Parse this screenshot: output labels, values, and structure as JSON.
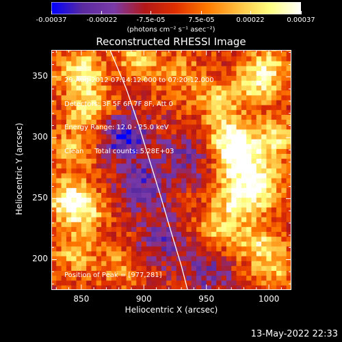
{
  "chart_data": {
    "type": "heatmap",
    "title": "Reconstructed RHESSI Image",
    "xlabel": "Heliocentric X (arcsec)",
    "ylabel": "Heliocentric Y (arcsec)",
    "xlim": [
      826,
      1018
    ],
    "ylim": [
      175,
      372
    ],
    "x_ticks": [
      850,
      900,
      950,
      1000
    ],
    "y_ticks": [
      200,
      250,
      300,
      350
    ],
    "colorbar": {
      "range": [
        -0.00037,
        0.00037
      ],
      "tick_values": [
        -0.00037,
        -0.00022,
        -7.5e-05,
        7.5e-05,
        0.00022,
        0.00037
      ],
      "tick_labels": [
        "-0.00037",
        "-0.00022",
        "-7.5e-05",
        "7.5e-05",
        "0.00022",
        "0.00037"
      ],
      "unit_label": "(photons cm⁻² s⁻¹ asec⁻²)",
      "colors": [
        "#0000ff",
        "#5a2aa0",
        "#7a3aa8",
        "#b31818",
        "#e03000",
        "#ff7a00",
        "#ffc040",
        "#ffff80",
        "#ffffff"
      ]
    },
    "annotations": [
      "29-Aug-2012 07:14:12.000 to 07:20:12.000",
      "Detectors: 3F 5F 6F 7F 8F, Att 0",
      "Energy Range: 12.0 - 25.0 keV",
      "Clean     Total counts: 5.28E+03"
    ],
    "peak_label": "Position of Peak = [977,281]",
    "peak": {
      "x": 977,
      "y": 281
    },
    "limb_curve": [
      [
        873,
        372
      ],
      [
        886,
        340
      ],
      [
        896,
        310
      ],
      [
        905,
        280
      ],
      [
        914,
        250
      ],
      [
        922,
        222
      ],
      [
        930,
        195
      ],
      [
        935,
        175
      ]
    ],
    "grid": false,
    "bright_sources": [
      {
        "x": 850,
        "y": 355,
        "strength": 0.85
      },
      {
        "x": 855,
        "y": 325,
        "strength": 0.7
      },
      {
        "x": 843,
        "y": 290,
        "strength": 0.55
      },
      {
        "x": 838,
        "y": 250,
        "strength": 0.75
      },
      {
        "x": 852,
        "y": 240,
        "strength": 0.65
      },
      {
        "x": 845,
        "y": 205,
        "strength": 0.5
      },
      {
        "x": 895,
        "y": 365,
        "strength": 0.6
      },
      {
        "x": 930,
        "y": 350,
        "strength": 0.45
      },
      {
        "x": 880,
        "y": 195,
        "strength": 0.35
      },
      {
        "x": 977,
        "y": 281,
        "strength": 1.0
      },
      {
        "x": 968,
        "y": 300,
        "strength": 0.85
      },
      {
        "x": 995,
        "y": 260,
        "strength": 0.75
      },
      {
        "x": 1005,
        "y": 300,
        "strength": 0.7
      },
      {
        "x": 975,
        "y": 250,
        "strength": 0.8
      },
      {
        "x": 960,
        "y": 330,
        "strength": 0.6
      },
      {
        "x": 990,
        "y": 345,
        "strength": 0.65
      },
      {
        "x": 960,
        "y": 225,
        "strength": 0.55
      },
      {
        "x": 990,
        "y": 215,
        "strength": 0.6
      },
      {
        "x": 1005,
        "y": 195,
        "strength": 0.55
      },
      {
        "x": 1000,
        "y": 360,
        "strength": 0.5
      }
    ],
    "dark_sources": [
      {
        "x": 885,
        "y": 300,
        "strength": 0.75
      },
      {
        "x": 900,
        "y": 260,
        "strength": 0.6
      },
      {
        "x": 915,
        "y": 215,
        "strength": 0.5
      },
      {
        "x": 935,
        "y": 285,
        "strength": 0.45
      },
      {
        "x": 950,
        "y": 190,
        "strength": 0.5
      }
    ]
  },
  "footer": {
    "timestamp": "13-May-2022 22:33"
  }
}
